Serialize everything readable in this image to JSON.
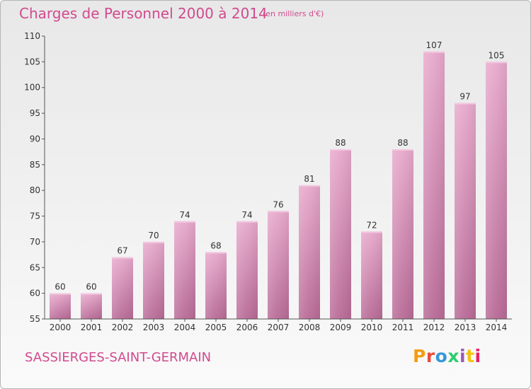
{
  "header": {
    "title": "Charges de Personnel 2000 à 2014",
    "subtitle": "(en milliers d'€)"
  },
  "footer": {
    "commune": "SASSIERGES-SAINT-GERMAIN",
    "logo_text": "Proxiti",
    "logo_colors": [
      "#f39c12",
      "#e74c3c",
      "#3498db",
      "#2ecc71",
      "#9b59b6",
      "#f1c40f",
      "#e91e63"
    ]
  },
  "colors": {
    "bar": "#d98cb7",
    "bar_light": "#e7a9cc",
    "bar_dark": "#b86a96",
    "text": "#d14a8e",
    "axis": "#555555"
  },
  "chart_data": {
    "type": "bar",
    "title": "Charges de Personnel 2000 à 2014",
    "subtitle": "(en milliers d'€)",
    "categories": [
      "2000",
      "2001",
      "2002",
      "2003",
      "2004",
      "2005",
      "2006",
      "2007",
      "2008",
      "2009",
      "2010",
      "2011",
      "2012",
      "2013",
      "2014"
    ],
    "values": [
      60,
      60,
      67,
      70,
      74,
      68,
      74,
      76,
      81,
      88,
      72,
      88,
      107,
      97,
      105
    ],
    "ylim": [
      55,
      110
    ],
    "yticks": [
      55,
      60,
      65,
      70,
      75,
      80,
      85,
      90,
      95,
      100,
      105,
      110
    ],
    "grid": false,
    "data_labels": true
  }
}
